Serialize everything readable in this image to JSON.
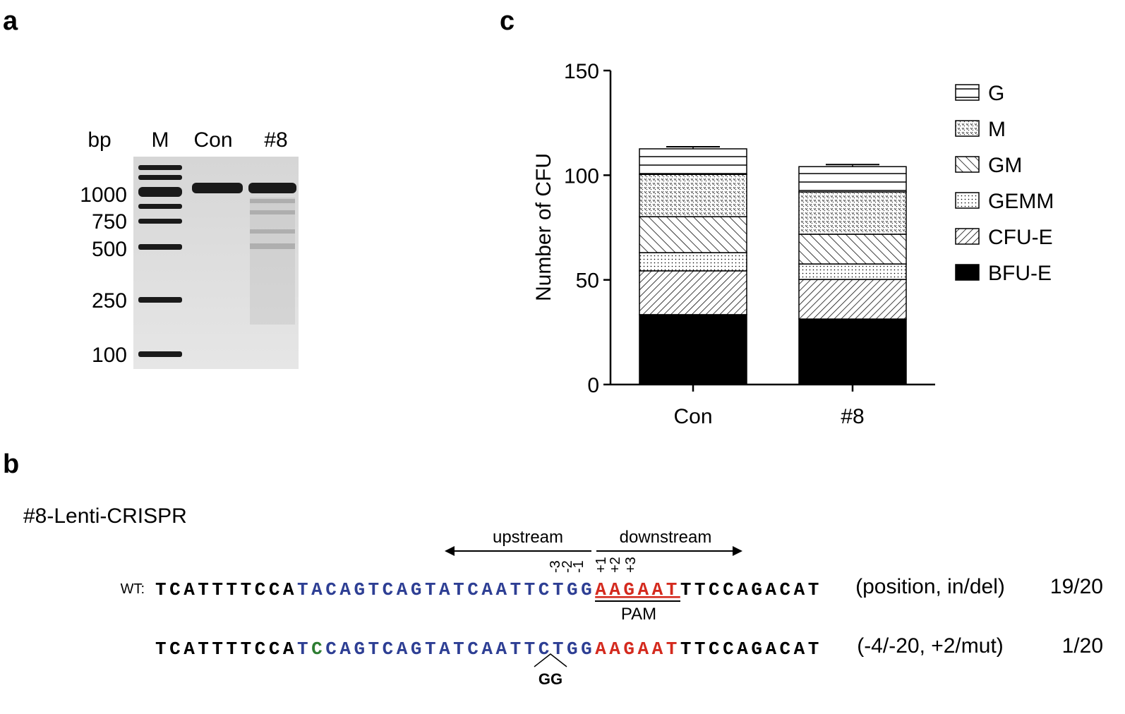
{
  "panel_a": {
    "letter": "a",
    "unit_label": "bp",
    "lanes": [
      "M",
      "Con",
      "#8"
    ],
    "sizes": [
      1000,
      750,
      500,
      250,
      100
    ]
  },
  "panel_b": {
    "letter": "b",
    "title": "#8-Lenti-CRISPR",
    "upstream": "upstream",
    "downstream": "downstream",
    "positions": [
      "-3",
      "-2",
      "-1",
      "+1",
      "+2",
      "+3"
    ],
    "pam": "PAM",
    "insertion": "GG",
    "rows": [
      {
        "label": "WT:",
        "segments": [
          {
            "text": "TCATTTTCCA",
            "color": "#000000"
          },
          {
            "text": "TACAGTCAGTATCAATTCTGG",
            "color": "#2e3f94"
          },
          {
            "text": "AAGAAT",
            "color": "#d42a1e",
            "underline": true
          },
          {
            "text": "TTCCAGACAT",
            "color": "#000000"
          }
        ],
        "change": "(position, in/del)",
        "count": "19/20"
      },
      {
        "segments": [
          {
            "text": "TCATTTTCCA",
            "color": "#000000"
          },
          {
            "text": "T",
            "color": "#2e3f94"
          },
          {
            "text": "C",
            "color": "#2e7d32"
          },
          {
            "text": "CAGTCAGTATCAATTCTGG",
            "color": "#2e3f94"
          },
          {
            "text": "AAGAAT",
            "color": "#d42a1e"
          },
          {
            "text": "TTCCAGACAT",
            "color": "#000000"
          }
        ],
        "change": "(-4/-20, +2/mut)",
        "count": "1/20"
      }
    ]
  },
  "panel_c": {
    "letter": "c"
  },
  "chart_data": {
    "type": "stacked-bar",
    "y_label": "Number of CFU",
    "categories": [
      "Con",
      "#8"
    ],
    "ylim": [
      0,
      150
    ],
    "yticks": [
      0,
      50,
      100,
      150
    ],
    "series": [
      {
        "name": "BFU-E",
        "pattern": "solid",
        "values": [
          33.4,
          31.3
        ],
        "errors": [
          1,
          1
        ]
      },
      {
        "name": "CFU-E",
        "pattern": "diagonal",
        "values": [
          20.9,
          18.9
        ],
        "errors": [
          1,
          1
        ]
      },
      {
        "name": "GEMM",
        "pattern": "sparse-dots",
        "values": [
          8.7,
          7.4
        ],
        "errors": [
          1,
          1
        ]
      },
      {
        "name": "GM",
        "pattern": "back-diagonal",
        "values": [
          17.2,
          14.2
        ],
        "errors": [
          1,
          1
        ]
      },
      {
        "name": "M",
        "pattern": "dense-dots",
        "values": [
          20.2,
          20.2
        ],
        "errors": [
          1,
          1
        ]
      },
      {
        "name": "G",
        "pattern": "horizontal",
        "values": [
          12.2,
          12.1
        ],
        "errors": [
          1,
          1
        ]
      }
    ]
  }
}
